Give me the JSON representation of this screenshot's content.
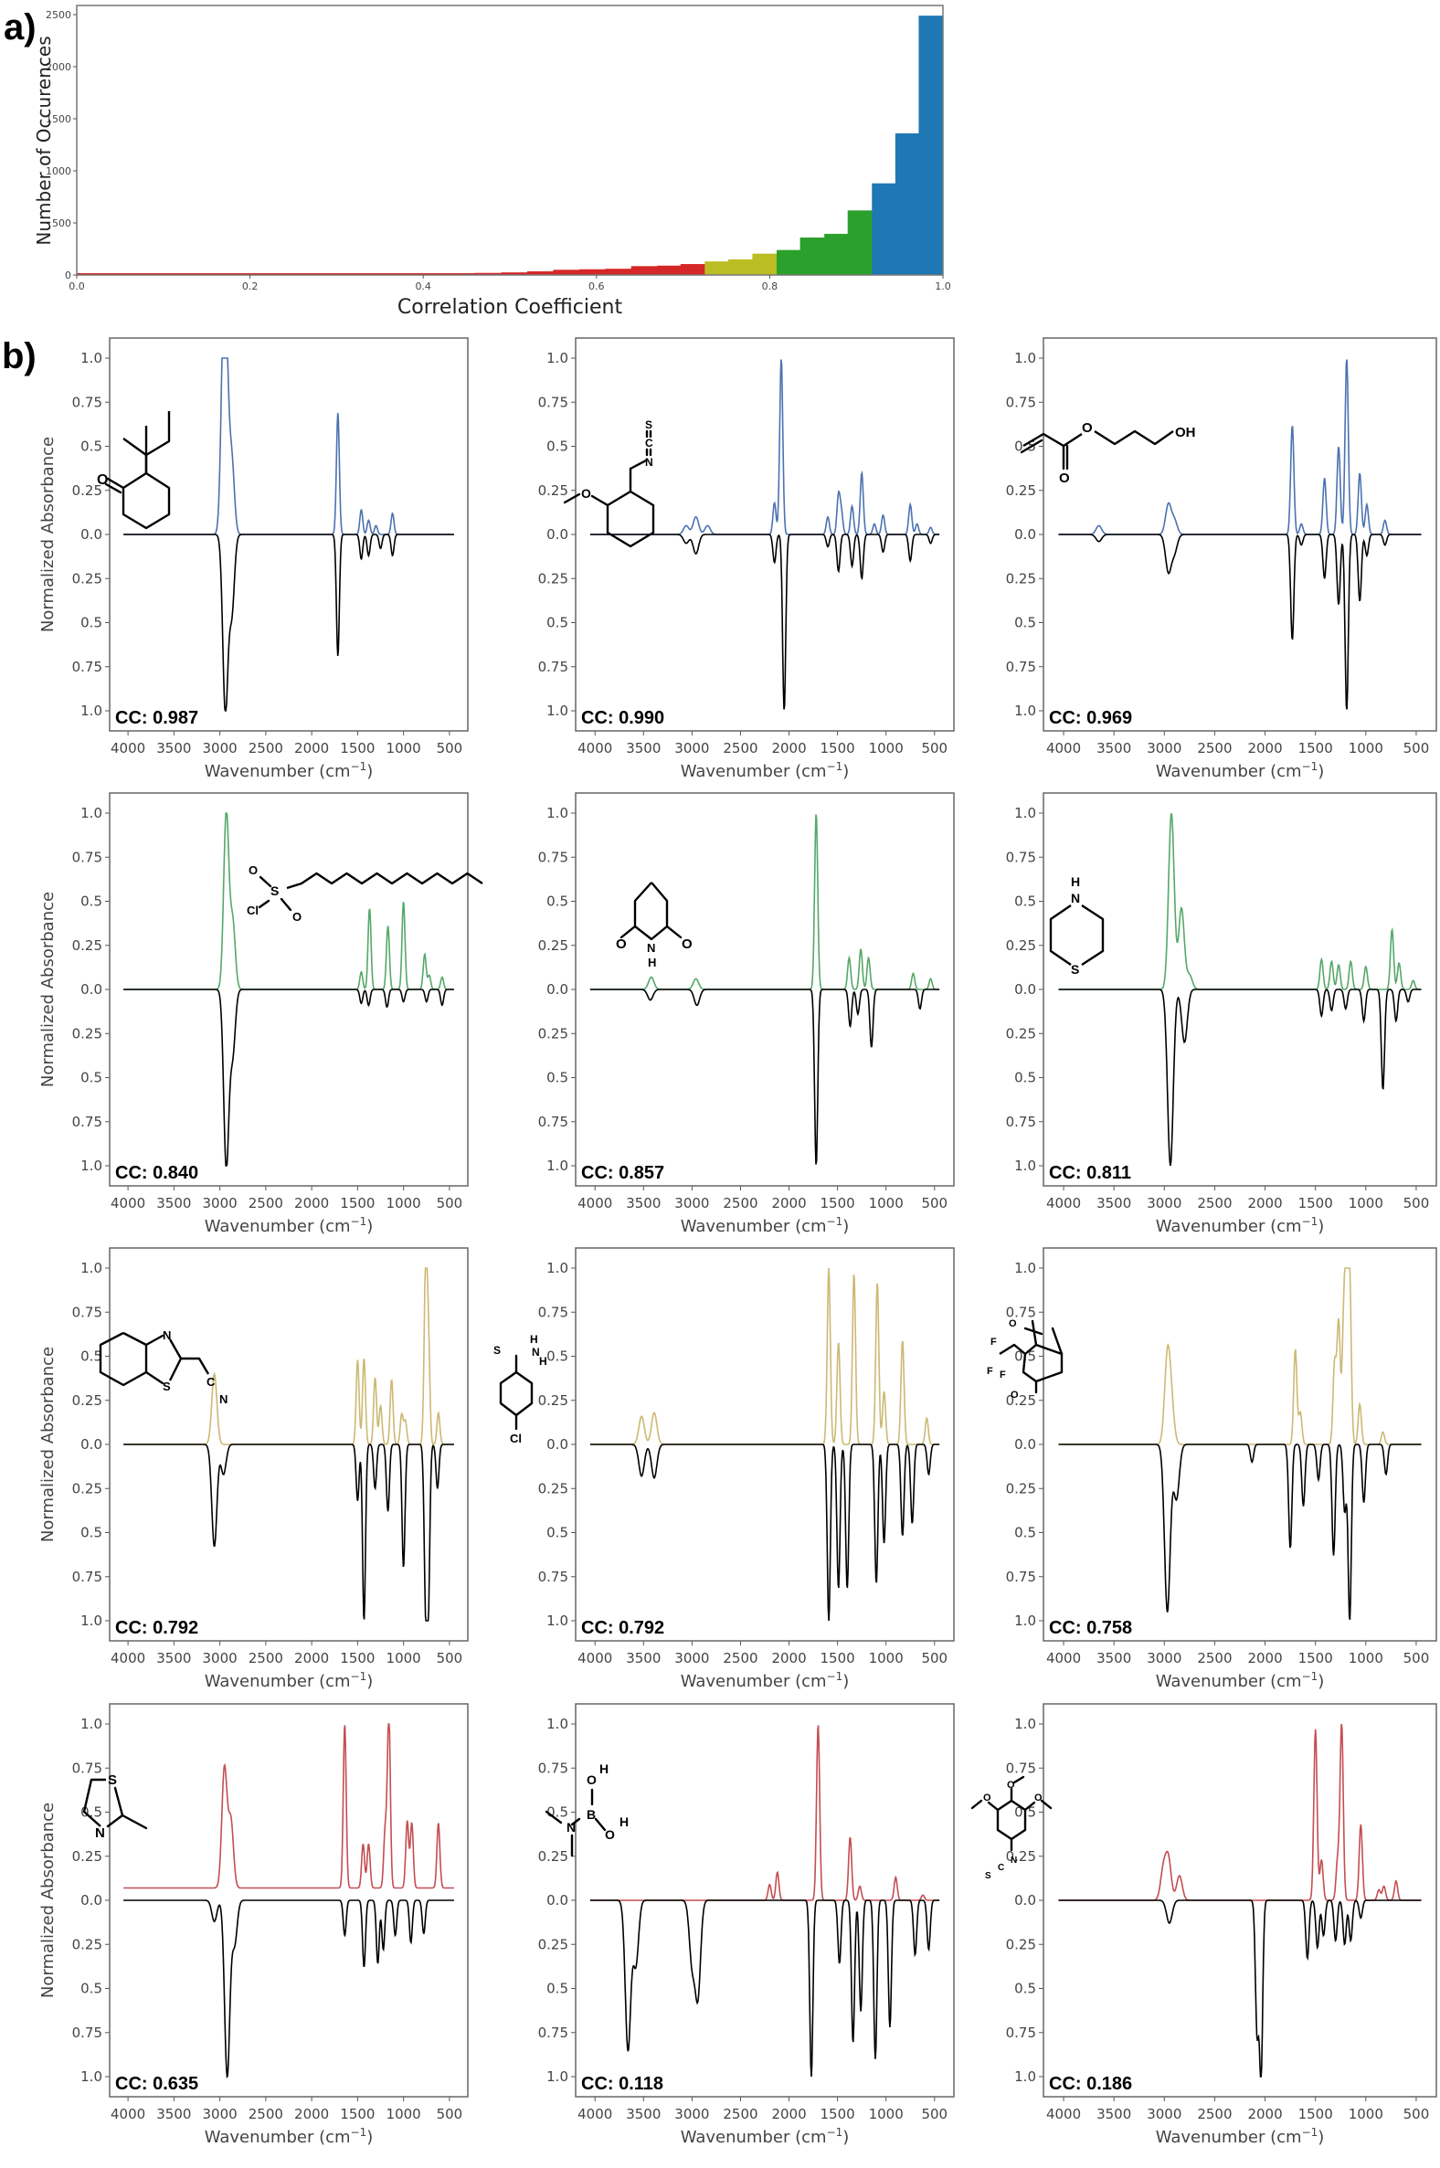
{
  "panel_labels": {
    "a": "a)",
    "b": "b)"
  },
  "histogram": {
    "xlabel": "Correlation Coefficient",
    "ylabel": "Number of Occurences",
    "xticks": [
      "0.0",
      "0.2",
      "0.4",
      "0.6",
      "0.8",
      "1.0"
    ],
    "yticks": [
      "0",
      "500",
      "1000",
      "1500",
      "2000",
      "2500"
    ]
  },
  "spectra_axes": {
    "xlabel": "Wavenumber (cm",
    "xlabel_sup": "−1",
    "xlabel_end": ")",
    "ylabel": "Normalized Absorbance",
    "xticks": [
      "4000",
      "3500",
      "3000",
      "2500",
      "2000",
      "1500",
      "1000",
      "500"
    ],
    "yticks_top": [
      "1.0",
      "0.75",
      "0.5",
      "0.25",
      "0.0"
    ],
    "yticks_bottom": [
      "0.25",
      "0.5",
      "0.75",
      "1.0"
    ]
  },
  "colors": {
    "blue": "#1f77b4",
    "green": "#2ca02c",
    "yellow": "#bcbd22",
    "red": "#d62728",
    "spec_blue": "#4c72b0",
    "spec_green": "#55a868",
    "spec_yellow": "#ccb974",
    "spec_red": "#c44e52",
    "experimental": "#000000"
  },
  "chart_data": [
    {
      "type": "bar",
      "title": "",
      "xlabel": "Correlation Coefficient",
      "ylabel": "Number of Occurences",
      "xlim": [
        0,
        1
      ],
      "ylim": [
        0,
        2600
      ],
      "grid": false,
      "bins": [
        {
          "x0": 0.0,
          "x1": 0.03,
          "count": 3,
          "color": "red"
        },
        {
          "x0": 0.03,
          "x1": 0.18,
          "count": 5,
          "color": "red"
        },
        {
          "x0": 0.18,
          "x1": 0.29,
          "count": 8,
          "color": "red"
        },
        {
          "x0": 0.29,
          "x1": 0.32,
          "count": 5,
          "color": "red"
        },
        {
          "x0": 0.32,
          "x1": 0.37,
          "count": 10,
          "color": "red"
        },
        {
          "x0": 0.37,
          "x1": 0.4,
          "count": 8,
          "color": "red"
        },
        {
          "x0": 0.4,
          "x1": 0.43,
          "count": 12,
          "color": "red"
        },
        {
          "x0": 0.43,
          "x1": 0.46,
          "count": 15,
          "color": "red"
        },
        {
          "x0": 0.46,
          "x1": 0.49,
          "count": 20,
          "color": "red"
        },
        {
          "x0": 0.49,
          "x1": 0.52,
          "count": 25,
          "color": "red"
        },
        {
          "x0": 0.52,
          "x1": 0.55,
          "count": 35,
          "color": "red"
        },
        {
          "x0": 0.55,
          "x1": 0.58,
          "count": 50,
          "color": "red"
        },
        {
          "x0": 0.58,
          "x1": 0.61,
          "count": 55,
          "color": "red"
        },
        {
          "x0": 0.61,
          "x1": 0.64,
          "count": 60,
          "color": "red"
        },
        {
          "x0": 0.64,
          "x1": 0.67,
          "count": 85,
          "color": "red"
        },
        {
          "x0": 0.67,
          "x1": 0.697,
          "count": 90,
          "color": "red"
        },
        {
          "x0": 0.697,
          "x1": 0.725,
          "count": 105,
          "color": "red"
        },
        {
          "x0": 0.725,
          "x1": 0.752,
          "count": 130,
          "color": "yellow"
        },
        {
          "x0": 0.752,
          "x1": 0.78,
          "count": 150,
          "color": "yellow"
        },
        {
          "x0": 0.78,
          "x1": 0.808,
          "count": 205,
          "color": "yellow"
        },
        {
          "x0": 0.808,
          "x1": 0.835,
          "count": 240,
          "color": "green"
        },
        {
          "x0": 0.835,
          "x1": 0.863,
          "count": 360,
          "color": "green"
        },
        {
          "x0": 0.863,
          "x1": 0.89,
          "count": 395,
          "color": "green"
        },
        {
          "x0": 0.89,
          "x1": 0.918,
          "count": 620,
          "color": "green"
        },
        {
          "x0": 0.918,
          "x1": 0.945,
          "count": 880,
          "color": "blue"
        },
        {
          "x0": 0.945,
          "x1": 0.972,
          "count": 1360,
          "color": "blue"
        },
        {
          "x0": 0.972,
          "x1": 1.0,
          "count": 2490,
          "color": "blue"
        }
      ]
    },
    {
      "type": "line",
      "description": "12 IR spectra panels: predicted spectrum (colored, positive) vs experimental (black, inverted)",
      "xlabel": "Wavenumber (cm⁻¹)",
      "ylabel": "Normalized Absorbance",
      "xlim": [
        4200,
        300
      ],
      "ylim": [
        -1.1,
        1.1
      ]
    }
  ],
  "spectra": [
    {
      "cc": "CC: 0.987",
      "color": "spec_blue",
      "mol": "2-sec-butylcyclohexanone",
      "pred": [
        [
          2960,
          1.0
        ],
        [
          2930,
          0.72
        ],
        [
          2870,
          0.41
        ],
        [
          1715,
          0.69
        ],
        [
          1460,
          0.14
        ],
        [
          1380,
          0.08
        ],
        [
          1120,
          0.12
        ],
        [
          1300,
          0.05
        ]
      ],
      "exp": [
        [
          2940,
          1.0
        ],
        [
          2870,
          0.44
        ],
        [
          1715,
          0.69
        ],
        [
          1460,
          0.14
        ],
        [
          1380,
          0.12
        ],
        [
          1120,
          0.12
        ],
        [
          1250,
          0.08
        ]
      ]
    },
    {
      "cc": "CC: 0.990",
      "color": "spec_blue",
      "mol": "2-methoxybenzyl isothiocyanate",
      "pred": [
        [
          2080,
          1.0
        ],
        [
          2150,
          0.18
        ],
        [
          2960,
          0.1
        ],
        [
          3060,
          0.05
        ],
        [
          2840,
          0.05
        ],
        [
          1600,
          0.1
        ],
        [
          1490,
          0.22
        ],
        [
          1460,
          0.12
        ],
        [
          1350,
          0.16
        ],
        [
          1250,
          0.35
        ],
        [
          1120,
          0.06
        ],
        [
          1030,
          0.11
        ],
        [
          750,
          0.17
        ],
        [
          680,
          0.06
        ],
        [
          540,
          0.04
        ]
      ],
      "exp": [
        [
          2050,
          1.0
        ],
        [
          2150,
          0.16
        ],
        [
          2960,
          0.11
        ],
        [
          3060,
          0.05
        ],
        [
          1600,
          0.07
        ],
        [
          1490,
          0.21
        ],
        [
          1350,
          0.18
        ],
        [
          1250,
          0.25
        ],
        [
          1030,
          0.1
        ],
        [
          750,
          0.15
        ],
        [
          540,
          0.05
        ]
      ]
    },
    {
      "cc": "CC: 0.969",
      "color": "spec_blue",
      "mol": "3-hydroxypropyl acrylate",
      "pred": [
        [
          1730,
          0.62
        ],
        [
          1410,
          0.32
        ],
        [
          1270,
          0.5
        ],
        [
          1190,
          1.0
        ],
        [
          1060,
          0.35
        ],
        [
          990,
          0.17
        ],
        [
          2960,
          0.17
        ],
        [
          2900,
          0.08
        ],
        [
          3650,
          0.05
        ],
        [
          810,
          0.08
        ],
        [
          1640,
          0.06
        ]
      ],
      "exp": [
        [
          1730,
          0.6
        ],
        [
          1410,
          0.25
        ],
        [
          1270,
          0.4
        ],
        [
          1190,
          1.0
        ],
        [
          1060,
          0.38
        ],
        [
          990,
          0.12
        ],
        [
          2960,
          0.21
        ],
        [
          2900,
          0.1
        ],
        [
          3650,
          0.04
        ],
        [
          810,
          0.06
        ],
        [
          1640,
          0.06
        ]
      ]
    },
    {
      "cc": "CC: 0.840",
      "color": "spec_green",
      "mol": "1-dodecanesulfonyl chloride",
      "pred": [
        [
          2930,
          1.0
        ],
        [
          2860,
          0.38
        ],
        [
          1370,
          0.46
        ],
        [
          1170,
          0.36
        ],
        [
          1000,
          0.5
        ],
        [
          770,
          0.2
        ],
        [
          720,
          0.08
        ],
        [
          580,
          0.07
        ],
        [
          1460,
          0.1
        ]
      ],
      "exp": [
        [
          2930,
          1.0
        ],
        [
          2860,
          0.36
        ],
        [
          1460,
          0.08
        ],
        [
          1380,
          0.09
        ],
        [
          1180,
          0.1
        ],
        [
          1000,
          0.07
        ],
        [
          750,
          0.07
        ],
        [
          580,
          0.09
        ]
      ]
    },
    {
      "cc": "CC: 0.857",
      "color": "spec_green",
      "mol": "glutarimide",
      "pred": [
        [
          1720,
          1.0
        ],
        [
          1380,
          0.18
        ],
        [
          1260,
          0.23
        ],
        [
          1180,
          0.18
        ],
        [
          3420,
          0.07
        ],
        [
          2960,
          0.06
        ],
        [
          720,
          0.09
        ],
        [
          540,
          0.06
        ]
      ],
      "exp": [
        [
          1720,
          1.0
        ],
        [
          1370,
          0.21
        ],
        [
          1290,
          0.14
        ],
        [
          1150,
          0.33
        ],
        [
          3430,
          0.06
        ],
        [
          2950,
          0.09
        ],
        [
          650,
          0.11
        ]
      ]
    },
    {
      "cc": "CC: 0.811",
      "color": "spec_green",
      "mol": "thiomorpholine",
      "pred": [
        [
          2930,
          1.0
        ],
        [
          2830,
          0.46
        ],
        [
          2750,
          0.08
        ],
        [
          1440,
          0.17
        ],
        [
          1340,
          0.16
        ],
        [
          1270,
          0.14
        ],
        [
          1150,
          0.16
        ],
        [
          1000,
          0.13
        ],
        [
          740,
          0.34
        ],
        [
          670,
          0.15
        ],
        [
          530,
          0.05
        ]
      ],
      "exp": [
        [
          2940,
          1.0
        ],
        [
          2800,
          0.3
        ],
        [
          1440,
          0.15
        ],
        [
          1340,
          0.12
        ],
        [
          1200,
          0.11
        ],
        [
          1020,
          0.18
        ],
        [
          830,
          0.57
        ],
        [
          700,
          0.18
        ],
        [
          580,
          0.07
        ]
      ]
    },
    {
      "cc": "CC: 0.792",
      "color": "spec_yellow",
      "mol": "2-benzothiazoleacetonitrile",
      "pred": [
        [
          3060,
          0.4
        ],
        [
          1500,
          0.48
        ],
        [
          1430,
          0.49
        ],
        [
          1310,
          0.38
        ],
        [
          1250,
          0.22
        ],
        [
          1130,
          0.37
        ],
        [
          1020,
          0.17
        ],
        [
          980,
          0.13
        ],
        [
          760,
          1.0
        ],
        [
          730,
          0.6
        ],
        [
          620,
          0.18
        ]
      ],
      "exp": [
        [
          3060,
          0.58
        ],
        [
          2960,
          0.17
        ],
        [
          1500,
          0.32
        ],
        [
          1430,
          1.0
        ],
        [
          1310,
          0.25
        ],
        [
          1170,
          0.38
        ],
        [
          1000,
          0.7
        ],
        [
          760,
          0.86
        ],
        [
          730,
          0.88
        ],
        [
          630,
          0.25
        ]
      ]
    },
    {
      "cc": "CC: 0.792",
      "color": "spec_yellow",
      "mol": "4-chlorothiobenzamide",
      "pred": [
        [
          3520,
          0.16
        ],
        [
          3390,
          0.18
        ],
        [
          1590,
          1.0
        ],
        [
          1490,
          0.58
        ],
        [
          1330,
          0.97
        ],
        [
          1090,
          0.92
        ],
        [
          1020,
          0.3
        ],
        [
          830,
          0.59
        ],
        [
          580,
          0.15
        ]
      ],
      "exp": [
        [
          3520,
          0.18
        ],
        [
          3390,
          0.19
        ],
        [
          1590,
          1.0
        ],
        [
          1490,
          0.82
        ],
        [
          1400,
          0.82
        ],
        [
          1100,
          0.79
        ],
        [
          1020,
          0.56
        ],
        [
          830,
          0.52
        ],
        [
          730,
          0.45
        ],
        [
          560,
          0.17
        ]
      ]
    },
    {
      "cc": "CC: 0.758",
      "color": "spec_yellow",
      "mol": "3-(trifluoroacetyl)camphor",
      "pred": [
        [
          2970,
          0.48
        ],
        [
          2930,
          0.2
        ],
        [
          1700,
          0.54
        ],
        [
          1650,
          0.18
        ],
        [
          1310,
          0.46
        ],
        [
          1270,
          0.69
        ],
        [
          1220,
          0.65
        ],
        [
          1190,
          1.0
        ],
        [
          1160,
          0.87
        ],
        [
          1060,
          0.23
        ],
        [
          830,
          0.07
        ]
      ],
      "exp": [
        [
          2970,
          0.95
        ],
        [
          2880,
          0.31
        ],
        [
          2130,
          0.1
        ],
        [
          1750,
          0.59
        ],
        [
          1620,
          0.35
        ],
        [
          1470,
          0.2
        ],
        [
          1320,
          0.63
        ],
        [
          1210,
          0.38
        ],
        [
          1160,
          1.0
        ],
        [
          1020,
          0.33
        ],
        [
          800,
          0.17
        ]
      ]
    },
    {
      "cc": "CC: 0.635",
      "color": "spec_red",
      "mol": "2-methyl-2-thiazoline",
      "base": 0.07,
      "pred": [
        [
          2950,
          0.68
        ],
        [
          2880,
          0.38
        ],
        [
          1640,
          0.93
        ],
        [
          1440,
          0.25
        ],
        [
          1380,
          0.25
        ],
        [
          1160,
          1.0
        ],
        [
          1200,
          0.32
        ],
        [
          960,
          0.38
        ],
        [
          910,
          0.37
        ],
        [
          620,
          0.37
        ]
      ],
      "exp": [
        [
          3060,
          0.12
        ],
        [
          2920,
          1.0
        ],
        [
          2840,
          0.25
        ],
        [
          1640,
          0.2
        ],
        [
          1430,
          0.38
        ],
        [
          1280,
          0.36
        ],
        [
          1220,
          0.28
        ],
        [
          1090,
          0.2
        ],
        [
          920,
          0.24
        ],
        [
          780,
          0.19
        ]
      ]
    },
    {
      "cc": "CC: 0.118",
      "color": "spec_red",
      "mol": "(dimethylamino)boronic acid",
      "pred": [
        [
          1700,
          1.0
        ],
        [
          2120,
          0.16
        ],
        [
          2200,
          0.09
        ],
        [
          1370,
          0.36
        ],
        [
          1270,
          0.08
        ],
        [
          900,
          0.13
        ],
        [
          620,
          0.03
        ]
      ],
      "exp": [
        [
          3660,
          0.85
        ],
        [
          3580,
          0.37
        ],
        [
          2940,
          0.54
        ],
        [
          3000,
          0.35
        ],
        [
          1770,
          1.0
        ],
        [
          1480,
          0.36
        ],
        [
          1340,
          0.81
        ],
        [
          1260,
          0.63
        ],
        [
          1110,
          0.9
        ],
        [
          960,
          0.72
        ],
        [
          700,
          0.31
        ],
        [
          560,
          0.28
        ]
      ]
    },
    {
      "cc": "CC: 0.186",
      "color": "spec_red",
      "mol": "3,4,5-trimethoxyphenyl isothiocyanate",
      "pred": [
        [
          2960,
          0.23
        ],
        [
          3010,
          0.17
        ],
        [
          2850,
          0.14
        ],
        [
          1500,
          0.97
        ],
        [
          1440,
          0.23
        ],
        [
          1240,
          1.0
        ],
        [
          1280,
          0.22
        ],
        [
          1050,
          0.43
        ],
        [
          870,
          0.06
        ],
        [
          820,
          0.08
        ],
        [
          700,
          0.11
        ]
      ],
      "exp": [
        [
          2950,
          0.13
        ],
        [
          2080,
          0.74
        ],
        [
          2040,
          1.0
        ],
        [
          1580,
          0.33
        ],
        [
          1480,
          0.27
        ],
        [
          1420,
          0.2
        ],
        [
          1300,
          0.23
        ],
        [
          1210,
          0.25
        ],
        [
          1150,
          0.23
        ],
        [
          1050,
          0.1
        ]
      ]
    }
  ]
}
